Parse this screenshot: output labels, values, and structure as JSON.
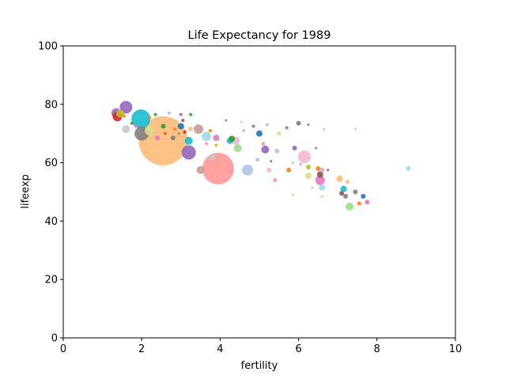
{
  "chart_data": {
    "type": "scatter",
    "title": "Life Expectancy for 1989",
    "xlabel": "fertility",
    "ylabel": "lifeexp",
    "xlim": [
      0,
      10
    ],
    "ylim": [
      0,
      100
    ],
    "xticks": [
      0,
      2,
      4,
      6,
      8,
      10
    ],
    "yticks": [
      0,
      20,
      40,
      60,
      80,
      100
    ],
    "xtick_labels": [
      "0",
      "2",
      "4",
      "6",
      "8",
      "10"
    ],
    "ytick_labels": [
      "0",
      "20",
      "40",
      "60",
      "80",
      "100"
    ],
    "grid": false,
    "legend": "none",
    "marker_alpha": 0.9,
    "points": [
      {
        "x": 2.55,
        "y": 67.5,
        "size": 31,
        "color": "#ffbb78"
      },
      {
        "x": 3.95,
        "y": 58.0,
        "size": 20,
        "color": "#ff9896"
      },
      {
        "x": 1.98,
        "y": 75.0,
        "size": 12,
        "color": "#17becf"
      },
      {
        "x": 1.6,
        "y": 79.0,
        "size": 8,
        "color": "#9467bd"
      },
      {
        "x": 3.2,
        "y": 63.5,
        "size": 9,
        "color": "#9467bd"
      },
      {
        "x": 2.0,
        "y": 70.0,
        "size": 9,
        "color": "#7f7f7f"
      },
      {
        "x": 6.15,
        "y": 62.0,
        "size": 8,
        "color": "#f7b6d2"
      },
      {
        "x": 4.7,
        "y": 57.5,
        "size": 7,
        "color": "#aec7e8"
      },
      {
        "x": 1.35,
        "y": 77.0,
        "size": 6,
        "color": "#9467bd"
      },
      {
        "x": 1.38,
        "y": 75.8,
        "size": 6,
        "color": "#d62728"
      },
      {
        "x": 1.45,
        "y": 76.8,
        "size": 5,
        "color": "#bcbd22"
      },
      {
        "x": 1.6,
        "y": 71.5,
        "size": 5,
        "color": "#c7c7c7"
      },
      {
        "x": 2.2,
        "y": 71.0,
        "size": 6,
        "color": "#dbdb8d"
      },
      {
        "x": 3.45,
        "y": 71.5,
        "size": 6,
        "color": "#c49c94"
      },
      {
        "x": 3.65,
        "y": 69.0,
        "size": 6,
        "color": "#9edae5"
      },
      {
        "x": 6.55,
        "y": 54.0,
        "size": 6,
        "color": "#e377c2"
      },
      {
        "x": 3.0,
        "y": 72.5,
        "size": 4,
        "color": "#1f77b4"
      },
      {
        "x": 3.2,
        "y": 67.5,
        "size": 5,
        "color": "#17becf"
      },
      {
        "x": 3.5,
        "y": 57.5,
        "size": 5,
        "color": "#c49c94"
      },
      {
        "x": 5.15,
        "y": 64.5,
        "size": 5,
        "color": "#9467bd"
      },
      {
        "x": 4.45,
        "y": 65.0,
        "size": 5,
        "color": "#98df8a"
      },
      {
        "x": 4.4,
        "y": 67.5,
        "size": 5,
        "color": "#f7b6d2"
      },
      {
        "x": 3.8,
        "y": 62.0,
        "size": 4,
        "color": "#c7c7c7"
      },
      {
        "x": 7.3,
        "y": 45.0,
        "size": 5,
        "color": "#98df8a"
      },
      {
        "x": 7.05,
        "y": 54.5,
        "size": 4,
        "color": "#ffbb78"
      },
      {
        "x": 4.25,
        "y": 67.5,
        "size": 4,
        "color": "#17becf"
      },
      {
        "x": 4.3,
        "y": 68.2,
        "size": 4,
        "color": "#2ca02c"
      },
      {
        "x": 3.9,
        "y": 68.5,
        "size": 4,
        "color": "#e377c2"
      },
      {
        "x": 5.0,
        "y": 70.0,
        "size": 4,
        "color": "#1f77b4"
      },
      {
        "x": 6.25,
        "y": 55.5,
        "size": 4,
        "color": "#dbdb8d"
      },
      {
        "x": 6.55,
        "y": 56.0,
        "size": 4,
        "color": "#8c564b"
      },
      {
        "x": 6.6,
        "y": 51.5,
        "size": 4,
        "color": "#9edae5"
      },
      {
        "x": 7.15,
        "y": 51.0,
        "size": 4,
        "color": "#17becf"
      },
      {
        "x": 2.4,
        "y": 68.5,
        "size": 3,
        "color": "#e377c2"
      },
      {
        "x": 2.55,
        "y": 72.5,
        "size": 3,
        "color": "#2ca02c"
      },
      {
        "x": 2.8,
        "y": 68.5,
        "size": 3,
        "color": "#7f7f7f"
      },
      {
        "x": 3.25,
        "y": 71.5,
        "size": 3,
        "color": "#ffbb78"
      },
      {
        "x": 5.25,
        "y": 57.5,
        "size": 3,
        "color": "#f7b6d2"
      },
      {
        "x": 5.45,
        "y": 64.0,
        "size": 3,
        "color": "#aec7e8"
      },
      {
        "x": 5.75,
        "y": 57.5,
        "size": 3,
        "color": "#ff7f0e"
      },
      {
        "x": 5.9,
        "y": 65.0,
        "size": 3,
        "color": "#9467bd"
      },
      {
        "x": 6.0,
        "y": 73.5,
        "size": 3,
        "color": "#7f7f7f"
      },
      {
        "x": 6.25,
        "y": 58.5,
        "size": 3,
        "color": "#bcbd22"
      },
      {
        "x": 6.5,
        "y": 58.0,
        "size": 3,
        "color": "#ff7f0e"
      },
      {
        "x": 6.6,
        "y": 57.5,
        "size": 3,
        "color": "#c5b0d5"
      },
      {
        "x": 7.1,
        "y": 49.5,
        "size": 3,
        "color": "#8c564b"
      },
      {
        "x": 7.2,
        "y": 48.5,
        "size": 3,
        "color": "#7f7f7f"
      },
      {
        "x": 7.45,
        "y": 50.0,
        "size": 3,
        "color": "#7f7f7f"
      },
      {
        "x": 7.65,
        "y": 48.5,
        "size": 3,
        "color": "#1f77b4"
      },
      {
        "x": 7.75,
        "y": 46.5,
        "size": 3,
        "color": "#e377c2"
      },
      {
        "x": 7.55,
        "y": 46.0,
        "size": 2.5,
        "color": "#ff7f0e"
      },
      {
        "x": 8.8,
        "y": 58.0,
        "size": 3,
        "color": "#9edae5"
      },
      {
        "x": 7.25,
        "y": 53.5,
        "size": 2.5,
        "color": "#ffbb78"
      },
      {
        "x": 5.4,
        "y": 54.0,
        "size": 2.5,
        "color": "#ff9896"
      },
      {
        "x": 5.1,
        "y": 66.5,
        "size": 2.5,
        "color": "#ff9896"
      },
      {
        "x": 5.5,
        "y": 70.0,
        "size": 2.5,
        "color": "#dbdb8d"
      },
      {
        "x": 4.95,
        "y": 61.0,
        "size": 2.5,
        "color": "#aec7e8"
      },
      {
        "x": 4.6,
        "y": 71.0,
        "size": 2,
        "color": "#aec7e8"
      },
      {
        "x": 4.85,
        "y": 72.5,
        "size": 2,
        "color": "#9467bd"
      },
      {
        "x": 5.2,
        "y": 73.0,
        "size": 2,
        "color": "#c5b0d5"
      },
      {
        "x": 5.7,
        "y": 72.0,
        "size": 2,
        "color": "#9467bd"
      },
      {
        "x": 3.0,
        "y": 76.5,
        "size": 2,
        "color": "#9467bd"
      },
      {
        "x": 3.25,
        "y": 76.5,
        "size": 2,
        "color": "#2ca02c"
      },
      {
        "x": 2.7,
        "y": 77.0,
        "size": 2,
        "color": "#c5b0d5"
      },
      {
        "x": 2.2,
        "y": 75.5,
        "size": 2,
        "color": "#ff7f0e"
      },
      {
        "x": 2.35,
        "y": 76.5,
        "size": 2,
        "color": "#2ca02c"
      },
      {
        "x": 1.55,
        "y": 76.0,
        "size": 2,
        "color": "#ff7f0e"
      },
      {
        "x": 1.75,
        "y": 73.5,
        "size": 2,
        "color": "#2ca02c"
      },
      {
        "x": 1.85,
        "y": 72.5,
        "size": 2,
        "color": "#e377c2"
      },
      {
        "x": 3.05,
        "y": 74.5,
        "size": 2,
        "color": "#8c564b"
      },
      {
        "x": 3.1,
        "y": 70.5,
        "size": 2,
        "color": "#d62728"
      },
      {
        "x": 2.85,
        "y": 71.5,
        "size": 2,
        "color": "#ff7f0e"
      },
      {
        "x": 3.75,
        "y": 71.0,
        "size": 2,
        "color": "#ff7f0e"
      },
      {
        "x": 3.65,
        "y": 66.5,
        "size": 2,
        "color": "#ff9896"
      },
      {
        "x": 3.9,
        "y": 66.0,
        "size": 2,
        "color": "#bcbd22"
      },
      {
        "x": 4.15,
        "y": 74.5,
        "size": 1.5,
        "color": "#7f7f7f"
      },
      {
        "x": 4.55,
        "y": 74.0,
        "size": 1.5,
        "color": "#f7b6d2"
      },
      {
        "x": 5.3,
        "y": 60.5,
        "size": 1.5,
        "color": "#2ca02c"
      },
      {
        "x": 5.85,
        "y": 60.0,
        "size": 1.5,
        "color": "#98df8a"
      },
      {
        "x": 6.05,
        "y": 59.5,
        "size": 1.5,
        "color": "#e377c2"
      },
      {
        "x": 6.45,
        "y": 65.0,
        "size": 1.5,
        "color": "#7f7f7f"
      },
      {
        "x": 6.65,
        "y": 71.5,
        "size": 1.5,
        "color": "#aec7e8"
      },
      {
        "x": 6.75,
        "y": 57.5,
        "size": 1.5,
        "color": "#8c564b"
      },
      {
        "x": 6.35,
        "y": 51.5,
        "size": 1.5,
        "color": "#c7c7c7"
      },
      {
        "x": 6.6,
        "y": 48.5,
        "size": 1.5,
        "color": "#ffbb78"
      },
      {
        "x": 5.85,
        "y": 49.0,
        "size": 1.5,
        "color": "#ffbb78"
      },
      {
        "x": 7.45,
        "y": 71.5,
        "size": 1.5,
        "color": "#f7b6d2"
      },
      {
        "x": 6.25,
        "y": 73.0,
        "size": 1.5,
        "color": "#9467bd"
      },
      {
        "x": 2.95,
        "y": 70.0,
        "size": 1.5,
        "color": "#7f7f7f"
      },
      {
        "x": 2.6,
        "y": 70.0,
        "size": 1.5,
        "color": "#d62728"
      }
    ]
  }
}
